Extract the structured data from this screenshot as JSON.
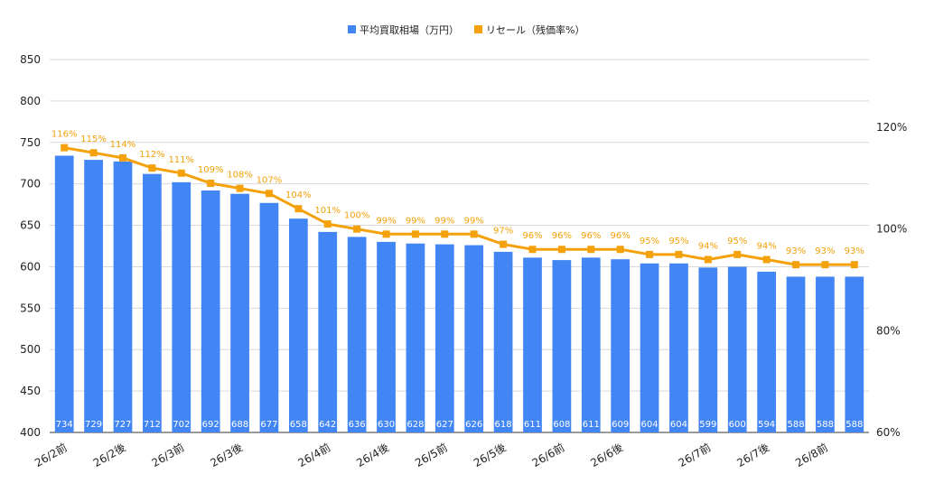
{
  "chart_data": {
    "type": "bar",
    "categories": [
      "26/2前",
      "",
      "26/2後",
      "",
      "26/3前",
      "",
      "26/3後",
      "",
      "",
      "26/4前",
      "",
      "26/4後",
      "",
      "26/5前",
      "",
      "26/5後",
      "",
      "26/6前",
      "",
      "26/6後",
      "",
      "",
      "26/7前",
      "",
      "26/7後",
      "",
      "26/8前",
      ""
    ],
    "series": [
      {
        "name": "平均買取相場（万円）",
        "type": "bar",
        "axis": "left",
        "color": "#4285f4",
        "values": [
          734,
          729,
          727,
          712,
          702,
          692,
          688,
          677,
          658,
          642,
          636,
          630,
          628,
          627,
          626,
          618,
          611,
          608,
          611,
          609,
          604,
          604,
          599,
          600,
          594,
          588,
          588,
          588
        ]
      },
      {
        "name": "リセール（残価率%）",
        "type": "line",
        "axis": "right",
        "color": "#f4a10b",
        "values": [
          116,
          115,
          114,
          112,
          111,
          109,
          108,
          107,
          104,
          101,
          100,
          99,
          99,
          99,
          99,
          97,
          96,
          96,
          96,
          96,
          95,
          95,
          94,
          95,
          94,
          93,
          93,
          93
        ],
        "labels": [
          "116%",
          "115%",
          "114%",
          "112%",
          "111%",
          "109%",
          "108%",
          "107%",
          "104%",
          "101%",
          "100%",
          "99%",
          "99%",
          "99%",
          "99%",
          "97%",
          "96%",
          "96%",
          "96%",
          "96%",
          "95%",
          "95%",
          "94%",
          "95%",
          "94%",
          "93%",
          "93%",
          "93%"
        ]
      }
    ],
    "y_left": {
      "range": [
        400,
        850
      ],
      "ticks": [
        "400",
        "450",
        "500",
        "550",
        "600",
        "650",
        "700",
        "750",
        "800",
        "850"
      ]
    },
    "y_right": {
      "range": [
        60,
        133.33
      ],
      "ticks": [
        "60%",
        "80%",
        "100%",
        "120%"
      ]
    },
    "grid": true,
    "legend_position": "top-center"
  }
}
